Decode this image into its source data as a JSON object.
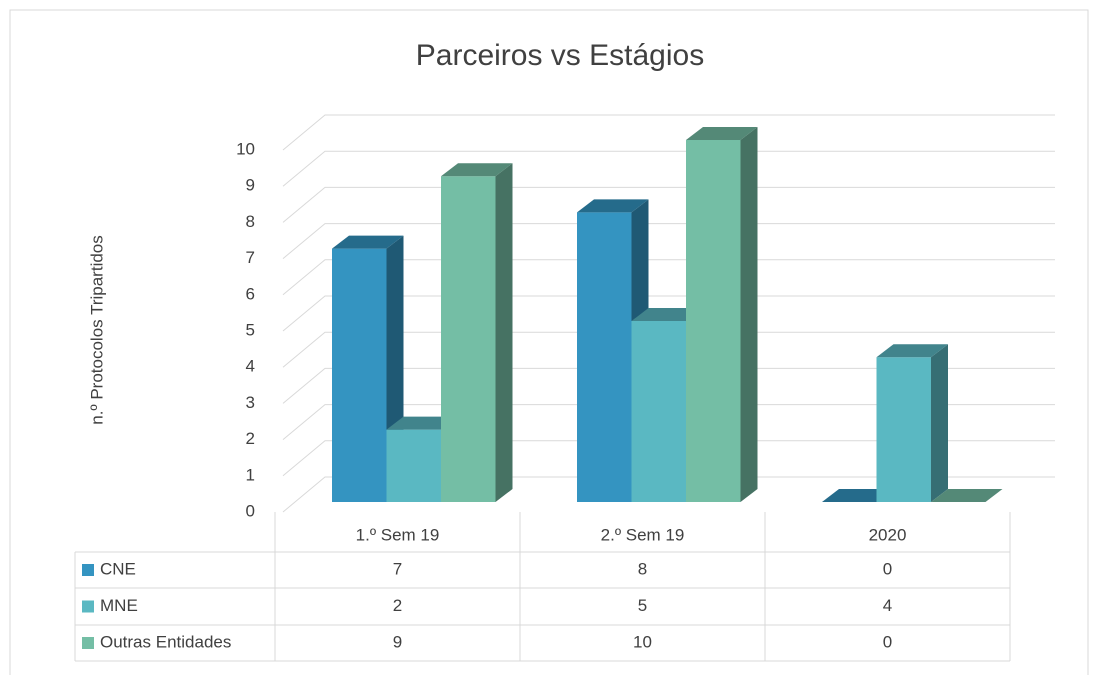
{
  "chart_data": {
    "type": "bar3d",
    "title": "Parceiros vs Estágios",
    "y_label": "n.º  Protocolos Tripartidos",
    "categories": [
      "1.º Sem 19",
      "2.º Sem 19",
      "2020"
    ],
    "series": [
      {
        "name": "CNE",
        "color": "#3494c1",
        "values": [
          7,
          8,
          0
        ]
      },
      {
        "name": "MNE",
        "color": "#5ab8c2",
        "values": [
          2,
          5,
          4
        ]
      },
      {
        "name": "Outras Entidades",
        "color": "#74bea5",
        "values": [
          9,
          10,
          0
        ]
      }
    ],
    "ylim": [
      0,
      10
    ],
    "yticks": [
      0,
      1,
      2,
      3,
      4,
      5,
      6,
      7,
      8,
      9,
      10
    ],
    "grid": true,
    "data_table": true
  }
}
